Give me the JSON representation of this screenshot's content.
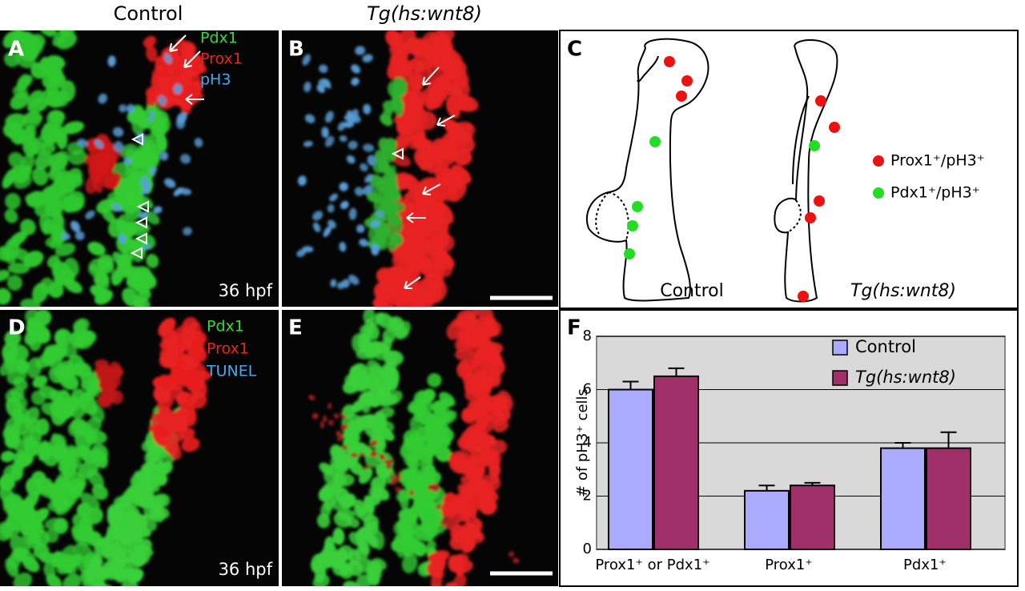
{
  "headers": [
    "Control",
    "Tg(hs:wnt8)"
  ],
  "panels": {
    "A": {
      "letter": "A",
      "labels": [
        "Pdx1",
        "Prox1",
        "pH3"
      ],
      "stage": "36 hpf"
    },
    "B": {
      "letter": "B"
    },
    "C": {
      "letter": "C",
      "captions": [
        "Control",
        "Tg(hs:wnt8)"
      ],
      "legend": [
        "Prox1⁺/pH3⁺",
        "Pdx1⁺/pH3⁺"
      ]
    },
    "D": {
      "letter": "D",
      "labels": [
        "Pdx1",
        "Prox1",
        "TUNEL"
      ],
      "stage": "36 hpf"
    },
    "E": {
      "letter": "E"
    },
    "F": {
      "letter": "F"
    }
  },
  "chart_data": {
    "type": "bar",
    "ylabel": "# of pH3⁺ cells",
    "categories": [
      "Prox1⁺ or Pdx1⁺",
      "Prox1⁺",
      "Pdx1⁺"
    ],
    "series": [
      {
        "name": "Control",
        "color": "#aaaaff",
        "values": [
          6.0,
          2.2,
          3.8
        ],
        "errors": [
          0.3,
          0.2,
          0.2
        ]
      },
      {
        "name": "Tg(hs:wnt8)",
        "color": "#a0306a",
        "values": [
          6.5,
          2.4,
          3.8
        ],
        "errors": [
          0.3,
          0.1,
          0.6
        ]
      }
    ],
    "ylim": [
      0,
      8
    ],
    "yticks": [
      0,
      2,
      4,
      6,
      8
    ],
    "grid": true,
    "legend": "top-right"
  }
}
